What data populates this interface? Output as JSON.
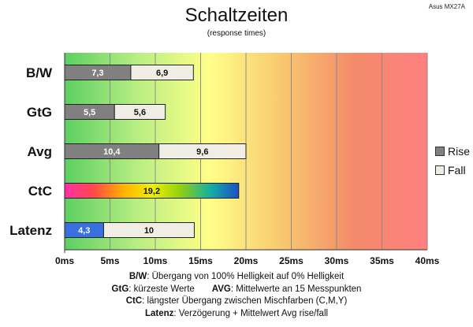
{
  "chart_data": {
    "type": "bar",
    "orientation": "horizontal",
    "stacked": true,
    "title": "Schaltzeiten",
    "subtitle": "(response times)",
    "source_label": "Asus MX27A",
    "categories": [
      "B/W",
      "GtG",
      "Avg",
      "CtC",
      "Latenz"
    ],
    "series": [
      {
        "name": "Rise",
        "values": [
          7.3,
          5.5,
          10.4,
          19.2,
          4.3
        ],
        "labels": [
          "7,3",
          "5,5",
          "10,4",
          "19,2",
          "4,3"
        ]
      },
      {
        "name": "Fall",
        "values": [
          6.9,
          5.6,
          9.6,
          null,
          10
        ],
        "labels": [
          "6,9",
          "5,6",
          "9,6",
          "",
          "10"
        ]
      }
    ],
    "xlim": [
      0,
      40
    ],
    "xticks": [
      0,
      5,
      10,
      15,
      20,
      25,
      30,
      35,
      40
    ],
    "xtick_labels": [
      "0ms",
      "5ms",
      "10ms",
      "15ms",
      "20ms",
      "25ms",
      "30ms",
      "35ms",
      "40ms"
    ],
    "grid": true,
    "legend_position": "right",
    "colors": {
      "rise": "#808080",
      "fall": "#f0ede4",
      "latenz_rise": "#3a6fe0",
      "ctc_gradient": [
        "#ff2fa8",
        "#ff4848",
        "#ffb000",
        "#f0f000",
        "#90d010",
        "#14b0a0",
        "#1a4fc8"
      ],
      "background_gradient": [
        "#5ccf62",
        "#b8ee82",
        "#ffff88",
        "#f8c870",
        "#f48a6a",
        "#ff8080"
      ]
    }
  },
  "notes": [
    {
      "term": "B/W",
      "text": ":  Übergang von 100% Helligkeit auf 0% Helligkeit"
    },
    {
      "term": "GtG",
      "text": ": kürzeste  Werte",
      "term2": "AVG",
      "text2": ": Mittelwerte  an 15 Messpunkten"
    },
    {
      "term": "CtC",
      "text": ": längster Übergang  zwischen Mischfarben (C,M,Y)"
    },
    {
      "term": "Latenz",
      "text": ": Verzögerung  + Mittelwert Avg rise/fall"
    }
  ]
}
